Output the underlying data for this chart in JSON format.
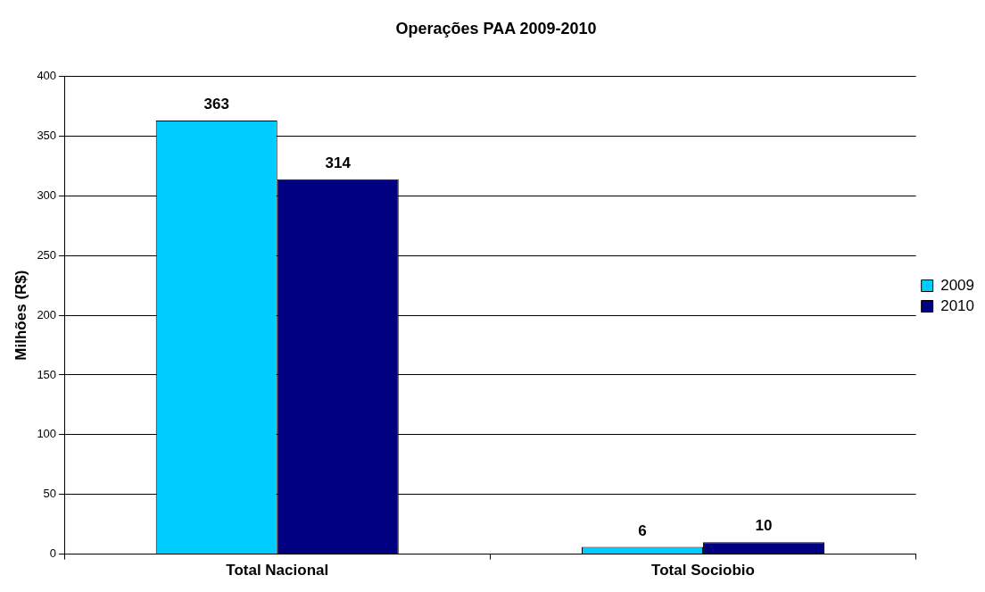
{
  "chart_data": {
    "type": "bar",
    "title": "Operações PAA 2009-2010",
    "ylabel": "Milhões (R$)",
    "categories": [
      "Total Nacional",
      "Total Sociobio"
    ],
    "series": [
      {
        "name": "2009",
        "color": "#00ccff",
        "values": [
          363,
          6
        ]
      },
      {
        "name": "2010",
        "color": "#000080",
        "values": [
          314,
          10
        ]
      }
    ],
    "ylim": [
      0,
      400
    ],
    "yticks": [
      0,
      50,
      100,
      150,
      200,
      250,
      300,
      350,
      400
    ],
    "grid": "y",
    "legend": "right",
    "data_labels": true
  }
}
